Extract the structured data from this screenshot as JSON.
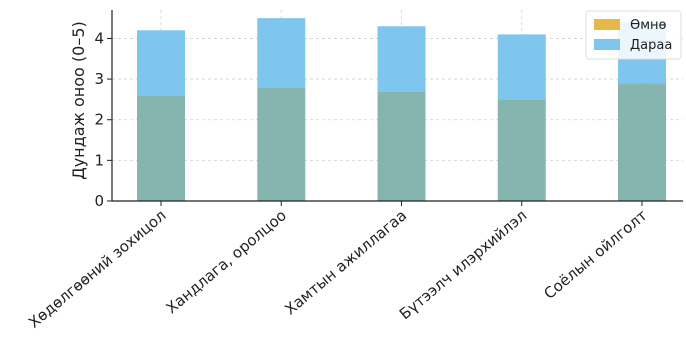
{
  "chart_data": {
    "type": "bar",
    "categories": [
      "Хөдөлгөөний зохицол",
      "Хандлага, оролцоо",
      "Хамтын ажиллагаа",
      "Бүтээлч илэрхийлэл",
      "Соёлын ойлголт"
    ],
    "series": [
      {
        "name": "Өмнө",
        "values": [
          2.6,
          2.8,
          2.7,
          2.5,
          2.9
        ],
        "color": "#e8b74a"
      },
      {
        "name": "Дараа",
        "values": [
          4.2,
          4.5,
          4.3,
          4.1,
          4.4
        ],
        "color": "#7fc6ee"
      }
    ],
    "overlap_color": "#86b5b0",
    "xlabel": "",
    "ylabel": "Дундаж оноо (0–5)",
    "ylim": [
      0,
      4.7
    ],
    "yticks": [
      0,
      1,
      2,
      3,
      4
    ],
    "grid": true,
    "legend_position": "top-right"
  }
}
